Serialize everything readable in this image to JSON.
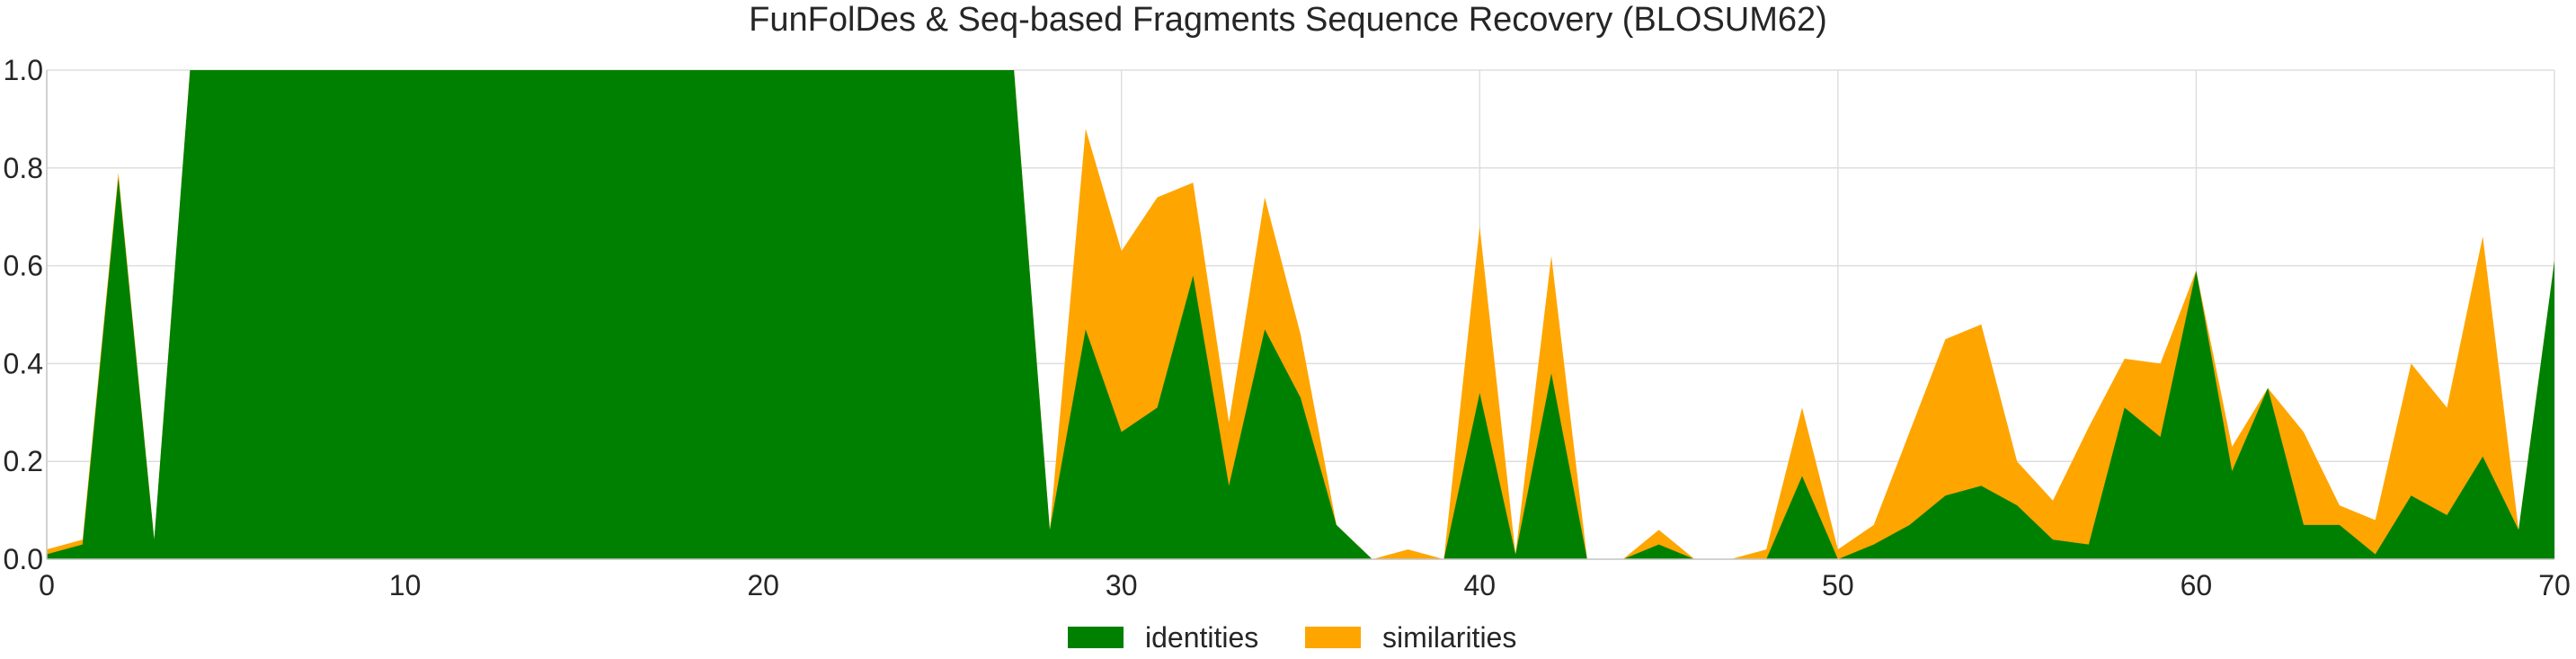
{
  "chart_data": {
    "type": "area",
    "title": "FunFolDes & Seq-based Fragments Sequence Recovery (BLOSUM62)",
    "xlabel": "",
    "ylabel": "",
    "xlim": [
      0,
      70
    ],
    "ylim": [
      0,
      1.0
    ],
    "x_ticks": [
      0,
      10,
      20,
      30,
      40,
      50,
      60,
      70
    ],
    "y_ticks": [
      0.0,
      0.2,
      0.4,
      0.6,
      0.8,
      1.0
    ],
    "x_tick_labels": [
      "0",
      "10",
      "20",
      "30",
      "40",
      "50",
      "60",
      "70"
    ],
    "y_tick_labels": [
      "0.0",
      "0.2",
      "0.4",
      "0.6",
      "0.8",
      "1.0"
    ],
    "grid": true,
    "legend_position": "bottom-center",
    "series": [
      {
        "name": "identities",
        "color": "#008000",
        "values": [
          0.01,
          0.03,
          0.78,
          0.04,
          1.0,
          1.0,
          1.0,
          1.0,
          1.0,
          1.0,
          1.0,
          1.0,
          1.0,
          1.0,
          1.0,
          1.0,
          1.0,
          1.0,
          1.0,
          1.0,
          1.0,
          1.0,
          1.0,
          1.0,
          1.0,
          1.0,
          1.0,
          1.0,
          0.06,
          0.47,
          0.26,
          0.31,
          0.58,
          0.15,
          0.47,
          0.33,
          0.07,
          0.0,
          0.0,
          0.0,
          0.34,
          0.01,
          0.38,
          0.0,
          0.0,
          0.03,
          0.0,
          0.0,
          0.0,
          0.17,
          0.0,
          0.03,
          0.07,
          0.13,
          0.15,
          0.11,
          0.04,
          0.03,
          0.31,
          0.25,
          0.59,
          0.18,
          0.35,
          0.07,
          0.07,
          0.01,
          0.13,
          0.09,
          0.21,
          0.06,
          0.61
        ]
      },
      {
        "name": "similarities",
        "color": "#ffa500",
        "values": [
          0.02,
          0.04,
          0.79,
          0.04,
          1.0,
          1.0,
          1.0,
          1.0,
          1.0,
          1.0,
          1.0,
          1.0,
          1.0,
          1.0,
          1.0,
          1.0,
          1.0,
          1.0,
          1.0,
          1.0,
          1.0,
          1.0,
          1.0,
          1.0,
          1.0,
          1.0,
          1.0,
          1.0,
          0.06,
          0.88,
          0.63,
          0.74,
          0.77,
          0.28,
          0.74,
          0.46,
          0.07,
          0.0,
          0.02,
          0.0,
          0.68,
          0.01,
          0.62,
          0.0,
          0.0,
          0.06,
          0.0,
          0.0,
          0.02,
          0.31,
          0.02,
          0.07,
          0.26,
          0.45,
          0.48,
          0.2,
          0.12,
          0.27,
          0.41,
          0.4,
          0.59,
          0.23,
          0.35,
          0.26,
          0.11,
          0.08,
          0.4,
          0.31,
          0.66,
          0.06,
          0.61
        ]
      }
    ]
  }
}
